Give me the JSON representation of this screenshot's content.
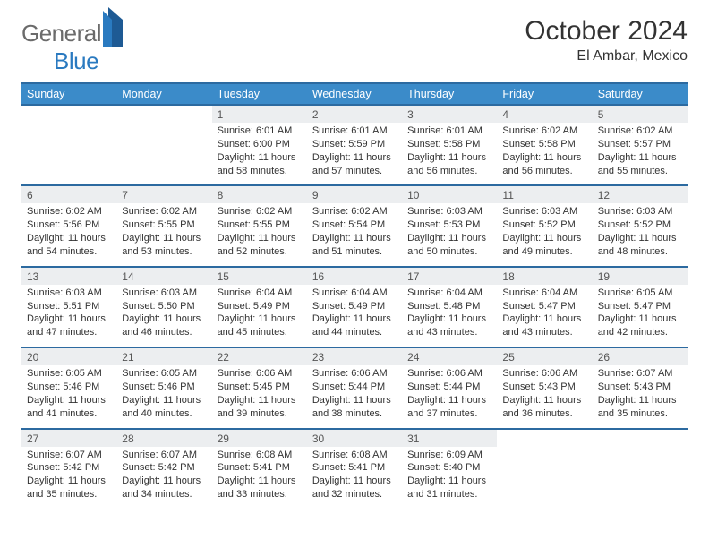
{
  "logo": {
    "general": "General",
    "blue": "Blue"
  },
  "title": {
    "month": "October 2024",
    "location": "El Ambar, Mexico"
  },
  "colors": {
    "header_bg": "#3b8bc9",
    "header_border": "#2c6aa0",
    "daynum_bg": "#eceef0",
    "text": "#333333"
  },
  "weekdays": [
    "Sunday",
    "Monday",
    "Tuesday",
    "Wednesday",
    "Thursday",
    "Friday",
    "Saturday"
  ],
  "weeks": [
    [
      null,
      null,
      {
        "n": "1",
        "sr": "6:01 AM",
        "ss": "6:00 PM",
        "dl": "11 hours and 58 minutes."
      },
      {
        "n": "2",
        "sr": "6:01 AM",
        "ss": "5:59 PM",
        "dl": "11 hours and 57 minutes."
      },
      {
        "n": "3",
        "sr": "6:01 AM",
        "ss": "5:58 PM",
        "dl": "11 hours and 56 minutes."
      },
      {
        "n": "4",
        "sr": "6:02 AM",
        "ss": "5:58 PM",
        "dl": "11 hours and 56 minutes."
      },
      {
        "n": "5",
        "sr": "6:02 AM",
        "ss": "5:57 PM",
        "dl": "11 hours and 55 minutes."
      }
    ],
    [
      {
        "n": "6",
        "sr": "6:02 AM",
        "ss": "5:56 PM",
        "dl": "11 hours and 54 minutes."
      },
      {
        "n": "7",
        "sr": "6:02 AM",
        "ss": "5:55 PM",
        "dl": "11 hours and 53 minutes."
      },
      {
        "n": "8",
        "sr": "6:02 AM",
        "ss": "5:55 PM",
        "dl": "11 hours and 52 minutes."
      },
      {
        "n": "9",
        "sr": "6:02 AM",
        "ss": "5:54 PM",
        "dl": "11 hours and 51 minutes."
      },
      {
        "n": "10",
        "sr": "6:03 AM",
        "ss": "5:53 PM",
        "dl": "11 hours and 50 minutes."
      },
      {
        "n": "11",
        "sr": "6:03 AM",
        "ss": "5:52 PM",
        "dl": "11 hours and 49 minutes."
      },
      {
        "n": "12",
        "sr": "6:03 AM",
        "ss": "5:52 PM",
        "dl": "11 hours and 48 minutes."
      }
    ],
    [
      {
        "n": "13",
        "sr": "6:03 AM",
        "ss": "5:51 PM",
        "dl": "11 hours and 47 minutes."
      },
      {
        "n": "14",
        "sr": "6:03 AM",
        "ss": "5:50 PM",
        "dl": "11 hours and 46 minutes."
      },
      {
        "n": "15",
        "sr": "6:04 AM",
        "ss": "5:49 PM",
        "dl": "11 hours and 45 minutes."
      },
      {
        "n": "16",
        "sr": "6:04 AM",
        "ss": "5:49 PM",
        "dl": "11 hours and 44 minutes."
      },
      {
        "n": "17",
        "sr": "6:04 AM",
        "ss": "5:48 PM",
        "dl": "11 hours and 43 minutes."
      },
      {
        "n": "18",
        "sr": "6:04 AM",
        "ss": "5:47 PM",
        "dl": "11 hours and 43 minutes."
      },
      {
        "n": "19",
        "sr": "6:05 AM",
        "ss": "5:47 PM",
        "dl": "11 hours and 42 minutes."
      }
    ],
    [
      {
        "n": "20",
        "sr": "6:05 AM",
        "ss": "5:46 PM",
        "dl": "11 hours and 41 minutes."
      },
      {
        "n": "21",
        "sr": "6:05 AM",
        "ss": "5:46 PM",
        "dl": "11 hours and 40 minutes."
      },
      {
        "n": "22",
        "sr": "6:06 AM",
        "ss": "5:45 PM",
        "dl": "11 hours and 39 minutes."
      },
      {
        "n": "23",
        "sr": "6:06 AM",
        "ss": "5:44 PM",
        "dl": "11 hours and 38 minutes."
      },
      {
        "n": "24",
        "sr": "6:06 AM",
        "ss": "5:44 PM",
        "dl": "11 hours and 37 minutes."
      },
      {
        "n": "25",
        "sr": "6:06 AM",
        "ss": "5:43 PM",
        "dl": "11 hours and 36 minutes."
      },
      {
        "n": "26",
        "sr": "6:07 AM",
        "ss": "5:43 PM",
        "dl": "11 hours and 35 minutes."
      }
    ],
    [
      {
        "n": "27",
        "sr": "6:07 AM",
        "ss": "5:42 PM",
        "dl": "11 hours and 35 minutes."
      },
      {
        "n": "28",
        "sr": "6:07 AM",
        "ss": "5:42 PM",
        "dl": "11 hours and 34 minutes."
      },
      {
        "n": "29",
        "sr": "6:08 AM",
        "ss": "5:41 PM",
        "dl": "11 hours and 33 minutes."
      },
      {
        "n": "30",
        "sr": "6:08 AM",
        "ss": "5:41 PM",
        "dl": "11 hours and 32 minutes."
      },
      {
        "n": "31",
        "sr": "6:09 AM",
        "ss": "5:40 PM",
        "dl": "11 hours and 31 minutes."
      },
      null,
      null
    ]
  ],
  "labels": {
    "sunrise": "Sunrise: ",
    "sunset": "Sunset: ",
    "daylight": "Daylight: "
  }
}
